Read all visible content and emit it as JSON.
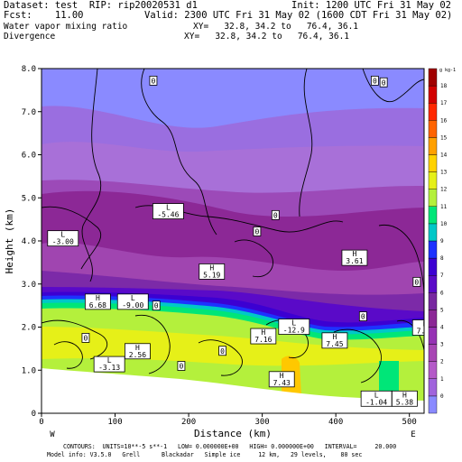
{
  "header": {
    "dataset": "Dataset: test  RIP: rip20020531 d1",
    "init": "Init: 1200 UTC Fri 31 May 02",
    "fcst": "Fcst:    11.00",
    "valid": "Valid: 2300 UTC Fri 31 May 02 (1600 CDT Fri 31 May 02)",
    "field1": "Water vapor mixing ratio",
    "xy1": "XY=   32.8, 34.2 to   76.4, 36.1",
    "field2": "Divergence",
    "xy2": "XY=   32.8, 34.2 to   76.4, 36.1"
  },
  "footer": {
    "contours": "CONTOURS:  UNITS=10**-5 s**-1   LOW= 0.000000E+00   HIGH= 0.000000E+00   INTERVAL=     20.000",
    "model": "Model info: V3.5.0   Grell      Blackadar   Simple ice     12 km,   29 levels,    80 sec"
  },
  "colorbar": {
    "unit": "g kg-1",
    "levels": [
      "0",
      "1",
      "2",
      "3",
      "4",
      "5",
      "6",
      "7",
      "8",
      "9",
      "10",
      "11",
      "12",
      "13",
      "14",
      "15",
      "16",
      "17",
      "18"
    ],
    "colors": [
      "#8a8aff",
      "#a064dc",
      "#b45ac8",
      "#a846b4",
      "#9632b4",
      "#8c2896",
      "#7828a0",
      "#5a0ac8",
      "#3c00d2",
      "#1e32ff",
      "#00c8c8",
      "#00e678",
      "#b4f03c",
      "#e6f018",
      "#ffd200",
      "#ffa000",
      "#ff6400",
      "#ff2800",
      "#d20000",
      "#a00000"
    ]
  },
  "chart_data": {
    "type": "heatmap",
    "title": "Water vapor mixing ratio",
    "overlay": "Divergence",
    "xlabel": "Distance (km)",
    "ylabel": "Height (km)",
    "xlim": [
      0,
      520
    ],
    "ylim": [
      0,
      8
    ],
    "xticks": [
      "0",
      "100",
      "200",
      "300",
      "400",
      "500"
    ],
    "yticks": [
      "0",
      "1.0",
      "2.0",
      "3.0",
      "4.0",
      "5.0",
      "6.0",
      "7.0",
      "8.0"
    ],
    "x_left_label": "W",
    "x_right_label": "E",
    "annotations": [
      {
        "label": "0",
        "x": 152,
        "y": 7.72
      },
      {
        "label": "0",
        "x": 453,
        "y": 7.72
      },
      {
        "label": "0",
        "x": 465,
        "y": 7.68
      },
      {
        "label": "L",
        "value": "-5.46",
        "x": 155,
        "y": 4.7
      },
      {
        "label": "0",
        "x": 318,
        "y": 4.6
      },
      {
        "label": "0",
        "x": 293,
        "y": 4.22
      },
      {
        "label": "L",
        "value": "-3.00",
        "x": 12,
        "y": 4.07
      },
      {
        "label": "H",
        "value": "3.61",
        "x": 412,
        "y": 3.62
      },
      {
        "label": "H",
        "value": "5.19",
        "x": 218,
        "y": 3.3
      },
      {
        "label": "0",
        "x": 510,
        "y": 3.05
      },
      {
        "label": "H",
        "value": "6.68",
        "x": 63,
        "y": 2.6
      },
      {
        "label": "L",
        "value": "-9.00",
        "x": 107,
        "y": 2.6
      },
      {
        "label": "0",
        "x": 156,
        "y": 2.5
      },
      {
        "label": "0",
        "x": 437,
        "y": 2.25
      },
      {
        "label": "L",
        "value": "-12.9",
        "x": 326,
        "y": 2.02
      },
      {
        "label": "H",
        "value": "7.16",
        "x": 288,
        "y": 1.8
      },
      {
        "label": "H",
        "value": "7.45",
        "x": 385,
        "y": 1.7
      },
      {
        "label": "H",
        "value": "7.23",
        "x": 508,
        "y": 2.0
      },
      {
        "label": "0",
        "x": 60,
        "y": 1.75
      },
      {
        "label": "H",
        "value": "2.56",
        "x": 117,
        "y": 1.45
      },
      {
        "label": "0",
        "x": 190,
        "y": 1.1
      },
      {
        "label": "0",
        "x": 246,
        "y": 1.45
      },
      {
        "label": "L",
        "value": "-3.13",
        "x": 75,
        "y": 1.15
      },
      {
        "label": "H",
        "value": "7.43",
        "x": 313,
        "y": 0.8
      },
      {
        "label": "L",
        "value": "-1.04",
        "x": 438,
        "y": 0.35
      },
      {
        "label": "H",
        "value": "5.38",
        "x": 480,
        "y": 0.35
      }
    ]
  }
}
